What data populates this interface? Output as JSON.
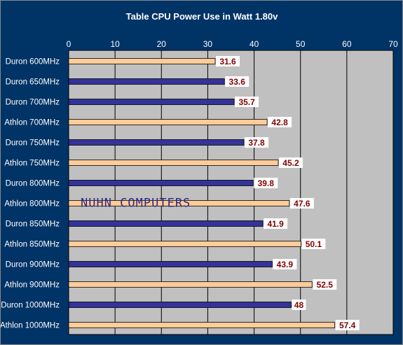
{
  "chart_data": {
    "type": "bar",
    "orientation": "horizontal",
    "title": "Table CPU Power Use in Watt 1.80v",
    "xlim": [
      0,
      70
    ],
    "ticks": [
      0,
      10,
      20,
      30,
      40,
      50,
      60,
      70
    ],
    "grid": true,
    "tick_position": "top",
    "watermark": "NUHN COMPUTERS",
    "categories": [
      "Duron 600MHz",
      "Duron 650MHz",
      "Duron 700MHz",
      "Athlon 700MHz",
      "Duron 750MHz",
      "Athlon 750MHz",
      "Duron 800MHz",
      "Athlon 800MHz",
      "Duron 850MHz",
      "Athlon 850MHz",
      "Duron 900MHz",
      "Athlon 900MHz",
      "Duron 1000MHz",
      "Athlon 1000MHz"
    ],
    "values": [
      31.6,
      33.6,
      35.7,
      42.8,
      37.8,
      45.2,
      39.8,
      47.6,
      41.9,
      50.1,
      43.9,
      52.5,
      48,
      57.4
    ],
    "labels": [
      "31.6",
      "33.6",
      "35.7",
      "42.8",
      "37.8",
      "45.2",
      "39.8",
      "47.6",
      "41.9",
      "50.1",
      "43.9",
      "52.5",
      "48",
      "57.4"
    ],
    "bar_colors": [
      "#ffcc99",
      "#333399",
      "#333399",
      "#ffcc99",
      "#333399",
      "#ffcc99",
      "#333399",
      "#ffcc99",
      "#333399",
      "#ffcc99",
      "#333399",
      "#ffcc99",
      "#333399",
      "#ffcc99"
    ],
    "colors": {
      "background": "#003366",
      "plot_area": "#c0c0c0",
      "gridline": "#000000",
      "duron_bar": "#333399",
      "athlon_bar": "#ffcc99",
      "label_text": "#800000",
      "label_box": "#ffffff",
      "axis_text": "#ffffff"
    }
  }
}
